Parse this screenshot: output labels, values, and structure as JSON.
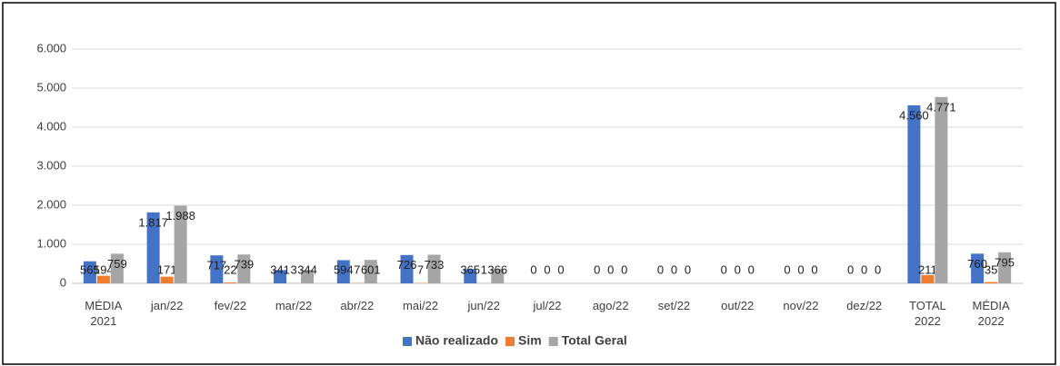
{
  "chart_data": {
    "type": "bar",
    "categories": [
      "MÉDIA 2021",
      "jan/22",
      "fev/22",
      "mar/22",
      "abr/22",
      "mai/22",
      "jun/22",
      "jul/22",
      "ago/22",
      "set/22",
      "out/22",
      "nov/22",
      "dez/22",
      "TOTAL 2022",
      "MÉDIA 2022"
    ],
    "series": [
      {
        "name": "Não realizado",
        "color": "#4472c4",
        "values": [
          565,
          1817,
          717,
          341,
          594,
          726,
          365,
          0,
          0,
          0,
          0,
          0,
          0,
          4560,
          760
        ],
        "value_labels": [
          "565",
          "1.817",
          "717",
          "341",
          "594",
          "726",
          "365",
          "0",
          "0",
          "0",
          "0",
          "0",
          "0",
          "4.560",
          "760"
        ]
      },
      {
        "name": "Sim",
        "color": "#ed7d31",
        "values": [
          194,
          171,
          22,
          3,
          7,
          7,
          1,
          0,
          0,
          0,
          0,
          0,
          0,
          211,
          35
        ]
      },
      {
        "name": "Total Geral",
        "color": "#a5a5a5",
        "values": [
          759,
          1988,
          739,
          344,
          601,
          733,
          366,
          0,
          0,
          0,
          0,
          0,
          0,
          4771,
          795
        ],
        "value_labels": [
          "759",
          "1.988",
          "739",
          "344",
          "601",
          "733",
          "366",
          "0",
          "0",
          "0",
          "0",
          "0",
          "0",
          "4.771",
          "795"
        ]
      }
    ],
    "ylim": [
      0,
      6000
    ],
    "yticks": [
      0,
      {
        "value": 1000,
        "label": "1.000"
      },
      {
        "value": 2000,
        "label": "2.000"
      },
      {
        "value": 3000,
        "label": "3.000"
      },
      {
        "value": 4000,
        "label": "4.000"
      },
      {
        "value": 5000,
        "label": "5.000"
      },
      {
        "value": 6000,
        "label": "6.000"
      }
    ],
    "grid": true,
    "legend": "bottom"
  }
}
